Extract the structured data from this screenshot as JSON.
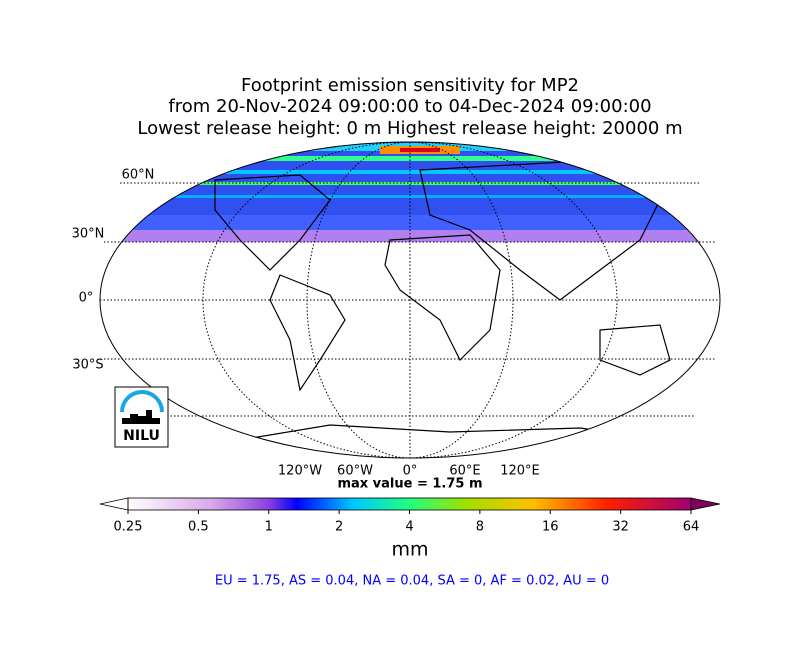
{
  "header": {
    "title_lines": [
      "Footprint emission sensitivity for MP2",
      "from 20-Nov-2024 09:00:00 to 04-Dec-2024 09:00:00",
      "Lowest release height: 0 m       Highest release height: 20000 m"
    ]
  },
  "map": {
    "lat_labels": [
      "60°N",
      "30°N",
      "0°",
      "30°S"
    ],
    "lon_labels": [
      "120°W",
      "60°W",
      "0°",
      "60°E",
      "120°E"
    ],
    "max_value": "max value = 1.75 m",
    "logo": "NILU"
  },
  "colorbar": {
    "ticks": [
      0.25,
      0.5,
      1,
      2,
      4,
      8,
      16,
      32,
      64
    ],
    "scale": "log",
    "lim": [
      0.25,
      64
    ],
    "label": "mm"
  },
  "footer": {
    "region_stats": "EU = 1.75,  AS = 0.04,  NA = 0.04,  SA = 0,  AF = 0.02,  AU = 0"
  }
}
